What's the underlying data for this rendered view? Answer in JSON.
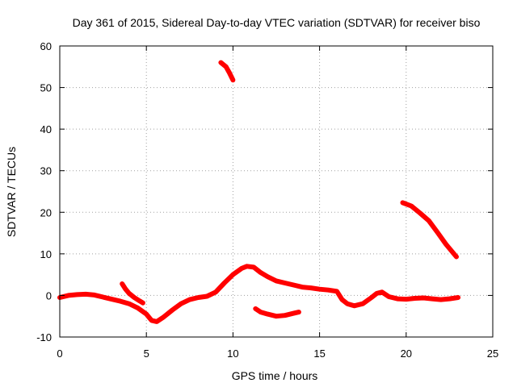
{
  "chart_data": {
    "type": "scatter",
    "title": "Day 361 of 2015, Sidereal Day-to-day VTEC variation (SDTVAR) for receiver biso",
    "xlabel": "GPS time / hours",
    "ylabel": "SDTVAR / TECUs",
    "xlim": [
      0,
      25
    ],
    "ylim": [
      -10,
      60
    ],
    "x_ticks": [
      0,
      5,
      10,
      15,
      20,
      25
    ],
    "y_ticks": [
      -10,
      0,
      10,
      20,
      30,
      40,
      50,
      60
    ],
    "x_tick_labels": [
      "0",
      "5",
      "10",
      "15",
      "20",
      "25"
    ],
    "y_tick_labels": [
      "-10",
      "0",
      "10",
      "20",
      "30",
      "40",
      "50",
      "60"
    ],
    "grid": true,
    "color": "#ff0000",
    "series": [
      {
        "name": "arc-1",
        "points": [
          [
            0,
            -0.5
          ],
          [
            0.5,
            0
          ],
          [
            1,
            0.2
          ],
          [
            1.5,
            0.3
          ],
          [
            2,
            0.1
          ],
          [
            2.5,
            -0.4
          ],
          [
            3,
            -0.9
          ],
          [
            3.5,
            -1.4
          ],
          [
            4,
            -2.0
          ],
          [
            4.5,
            -3.0
          ],
          [
            5,
            -4.5
          ],
          [
            5.3,
            -6.0
          ],
          [
            5.6,
            -6.3
          ],
          [
            6,
            -5.2
          ],
          [
            6.5,
            -3.5
          ],
          [
            7,
            -2.0
          ],
          [
            7.5,
            -1.0
          ],
          [
            8,
            -0.5
          ],
          [
            8.5,
            -0.2
          ],
          [
            9,
            0.8
          ],
          [
            9.5,
            3.0
          ],
          [
            10,
            5.0
          ],
          [
            10.5,
            6.5
          ],
          [
            10.8,
            7.0
          ],
          [
            11.2,
            6.8
          ],
          [
            11.6,
            5.5
          ],
          [
            12,
            4.5
          ],
          [
            12.5,
            3.5
          ],
          [
            13,
            3.0
          ],
          [
            13.5,
            2.5
          ],
          [
            14,
            2.0
          ],
          [
            14.5,
            1.8
          ],
          [
            15,
            1.5
          ],
          [
            15.5,
            1.3
          ],
          [
            16,
            1.0
          ],
          [
            16.3,
            -1.0
          ],
          [
            16.6,
            -2.0
          ],
          [
            17,
            -2.5
          ],
          [
            17.5,
            -2.0
          ],
          [
            18,
            -0.5
          ],
          [
            18.3,
            0.5
          ],
          [
            18.6,
            0.8
          ],
          [
            19,
            -0.3
          ],
          [
            19.5,
            -0.8
          ],
          [
            20,
            -0.9
          ],
          [
            20.5,
            -0.7
          ],
          [
            21,
            -0.6
          ],
          [
            21.5,
            -0.8
          ],
          [
            22,
            -1.0
          ],
          [
            22.5,
            -0.8
          ],
          [
            23,
            -0.5
          ]
        ]
      },
      {
        "name": "arc-2",
        "points": [
          [
            3.6,
            2.8
          ],
          [
            3.8,
            1.5
          ],
          [
            4.0,
            0.5
          ],
          [
            4.3,
            -0.5
          ],
          [
            4.6,
            -1.3
          ],
          [
            4.8,
            -1.8
          ]
        ]
      },
      {
        "name": "arc-3",
        "points": [
          [
            9.3,
            56.0
          ],
          [
            9.6,
            55.0
          ],
          [
            9.8,
            53.5
          ],
          [
            10.0,
            51.8
          ]
        ]
      },
      {
        "name": "arc-4",
        "points": [
          [
            11.3,
            -3.2
          ],
          [
            11.6,
            -4.0
          ],
          [
            12.0,
            -4.5
          ],
          [
            12.5,
            -5.0
          ],
          [
            13.0,
            -4.8
          ],
          [
            13.5,
            -4.3
          ],
          [
            13.8,
            -4.0
          ]
        ]
      },
      {
        "name": "arc-5",
        "points": [
          [
            19.8,
            22.3
          ],
          [
            20.3,
            21.5
          ],
          [
            20.8,
            19.8
          ],
          [
            21.3,
            18.0
          ],
          [
            21.8,
            15.2
          ],
          [
            22.3,
            12.3
          ],
          [
            22.9,
            9.3
          ]
        ]
      }
    ]
  }
}
